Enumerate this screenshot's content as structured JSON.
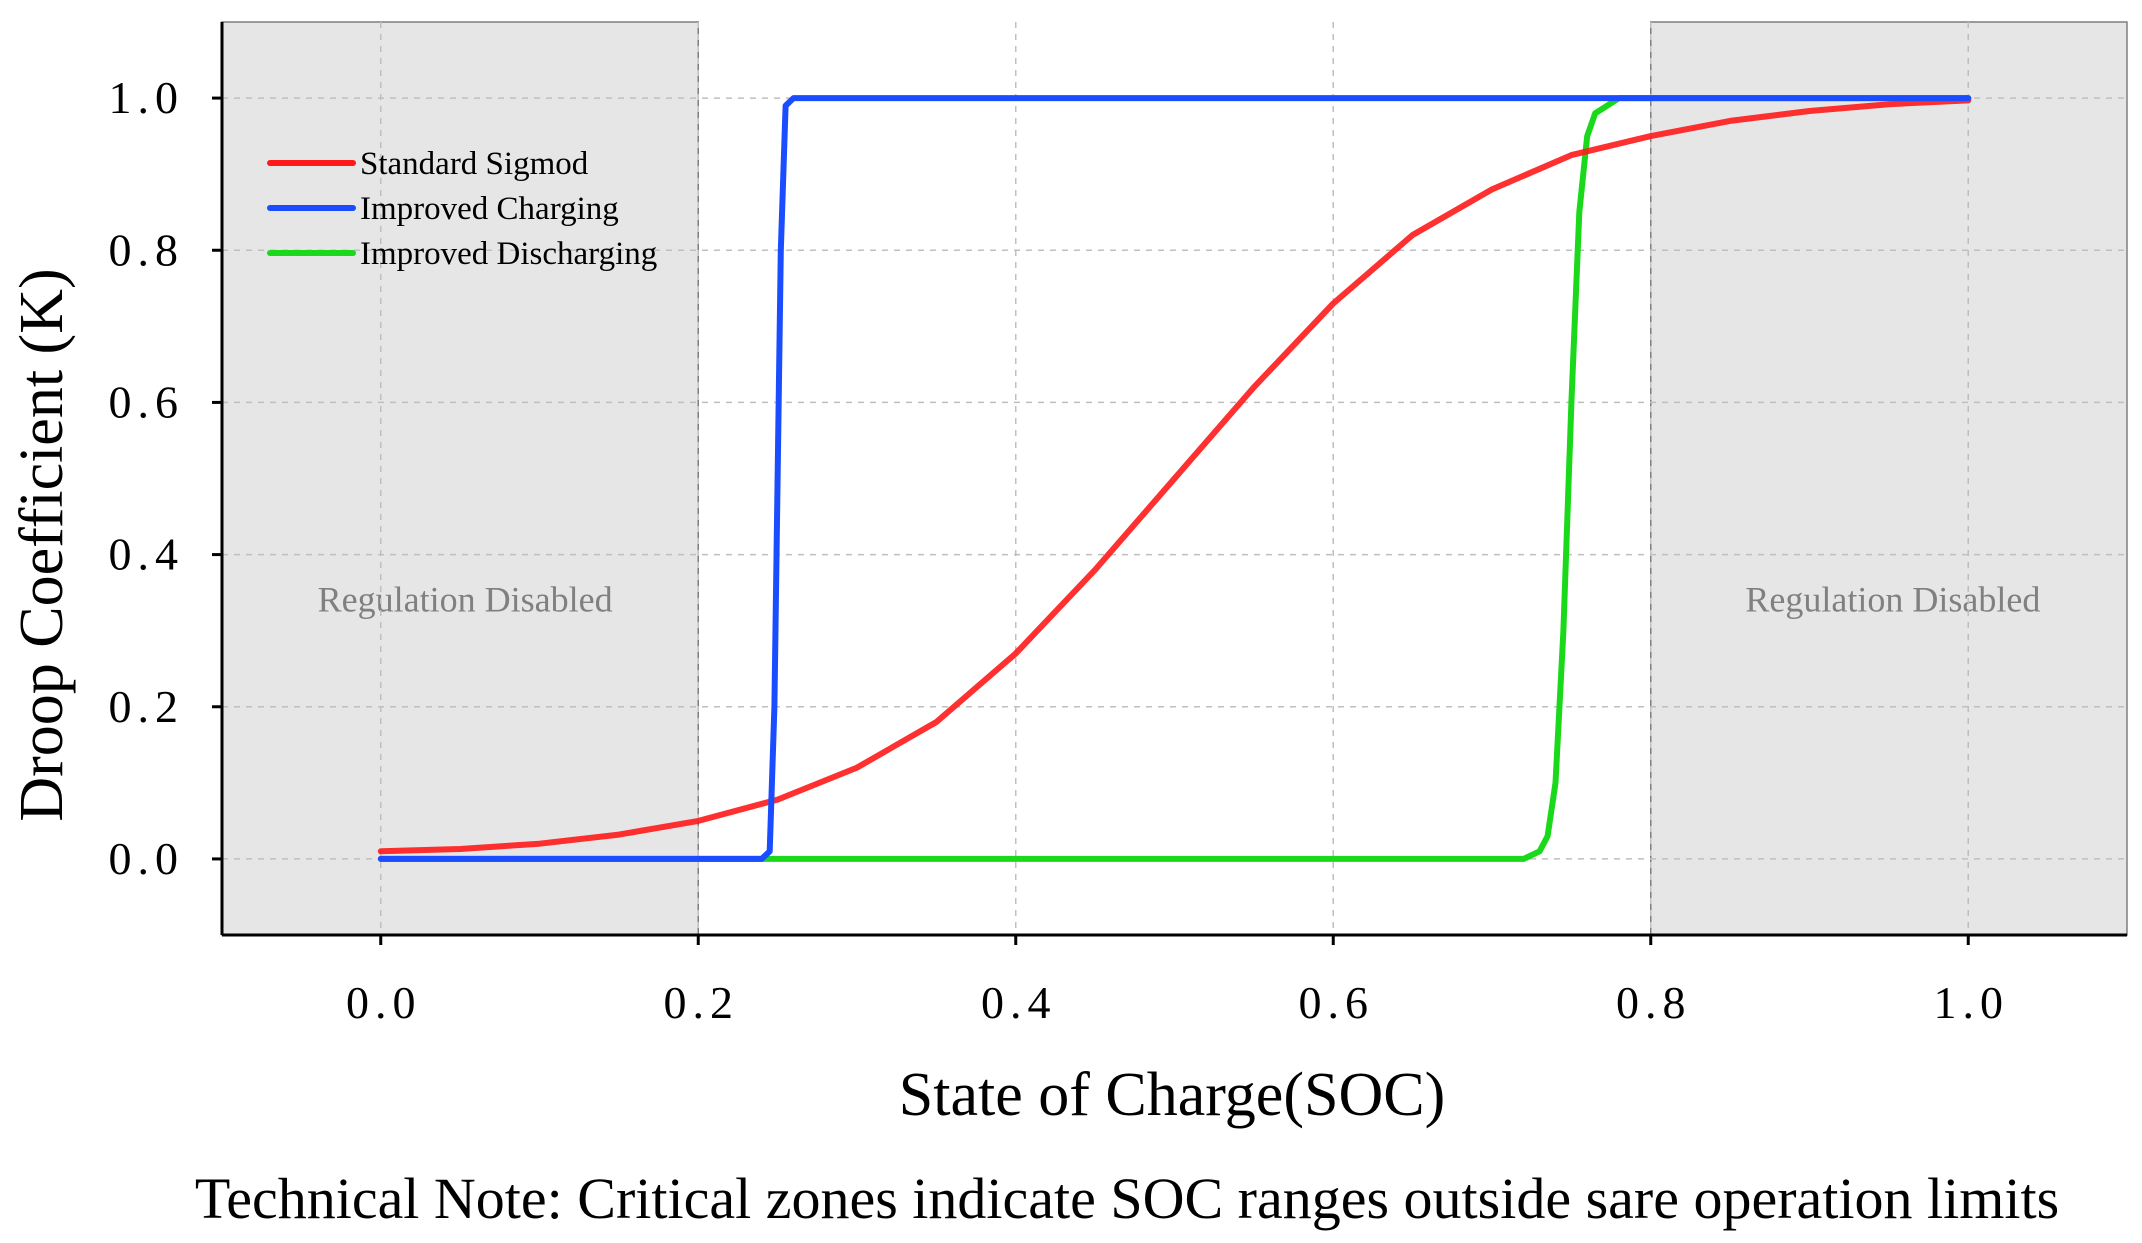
{
  "chart_data": {
    "type": "line",
    "title": "",
    "xlabel": "State of Charge(SOC)",
    "ylabel": "Droop Coefficient (K)",
    "xlim": [
      -0.1,
      1.1
    ],
    "ylim": [
      -0.1,
      1.1
    ],
    "x_ticks": [
      0.0,
      0.2,
      0.4,
      0.6,
      0.8,
      1.0
    ],
    "y_ticks": [
      0.0,
      0.2,
      0.4,
      0.6,
      0.8,
      1.0
    ],
    "x_tick_labels": [
      "0.0",
      "0.2",
      "0.4",
      "0.6",
      "0.8",
      "1.0"
    ],
    "y_tick_labels": [
      "0.0",
      "0.2",
      "0.4",
      "0.6",
      "0.8",
      "1.0"
    ],
    "grid": true,
    "legend_position": "top-left",
    "series": [
      {
        "name": "Standard Sigmod",
        "color": "#ff1a1a",
        "x": [
          0.0,
          0.05,
          0.1,
          0.15,
          0.2,
          0.25,
          0.3,
          0.35,
          0.4,
          0.45,
          0.5,
          0.55,
          0.6,
          0.65,
          0.7,
          0.75,
          0.8,
          0.85,
          0.9,
          0.95,
          1.0
        ],
        "values": [
          0.01,
          0.013,
          0.02,
          0.032,
          0.05,
          0.078,
          0.12,
          0.18,
          0.27,
          0.38,
          0.5,
          0.62,
          0.73,
          0.82,
          0.88,
          0.925,
          0.95,
          0.97,
          0.983,
          0.992,
          0.997
        ]
      },
      {
        "name": "Improved Charging",
        "color": "#1a4dff",
        "x": [
          0.0,
          0.2,
          0.24,
          0.245,
          0.248,
          0.25,
          0.252,
          0.255,
          0.26,
          0.3,
          0.5,
          0.8,
          1.0
        ],
        "values": [
          0.0,
          0.0,
          0.0,
          0.01,
          0.2,
          0.5,
          0.8,
          0.99,
          1.0,
          1.0,
          1.0,
          1.0,
          1.0
        ]
      },
      {
        "name": "Improved Discharging",
        "color": "#1ad91a",
        "x": [
          0.0,
          0.2,
          0.5,
          0.72,
          0.73,
          0.735,
          0.74,
          0.745,
          0.75,
          0.755,
          0.76,
          0.765,
          0.78,
          0.8,
          1.0
        ],
        "values": [
          0.0,
          0.0,
          0.0,
          0.0,
          0.01,
          0.03,
          0.1,
          0.3,
          0.6,
          0.85,
          0.95,
          0.98,
          1.0,
          1.0,
          1.0
        ]
      }
    ],
    "regions": [
      {
        "label": "Regulation Disabled",
        "x_start": -0.1,
        "x_end": 0.2
      },
      {
        "label": "Regulation Disabled",
        "x_start": 0.8,
        "x_end": 1.1
      }
    ],
    "note": "Technical Note: Critical zones indicate SOC ranges outside sare operation limits",
    "colors": {
      "region_fill": "#e6e6e6",
      "grid": "#bfbfbf"
    }
  }
}
